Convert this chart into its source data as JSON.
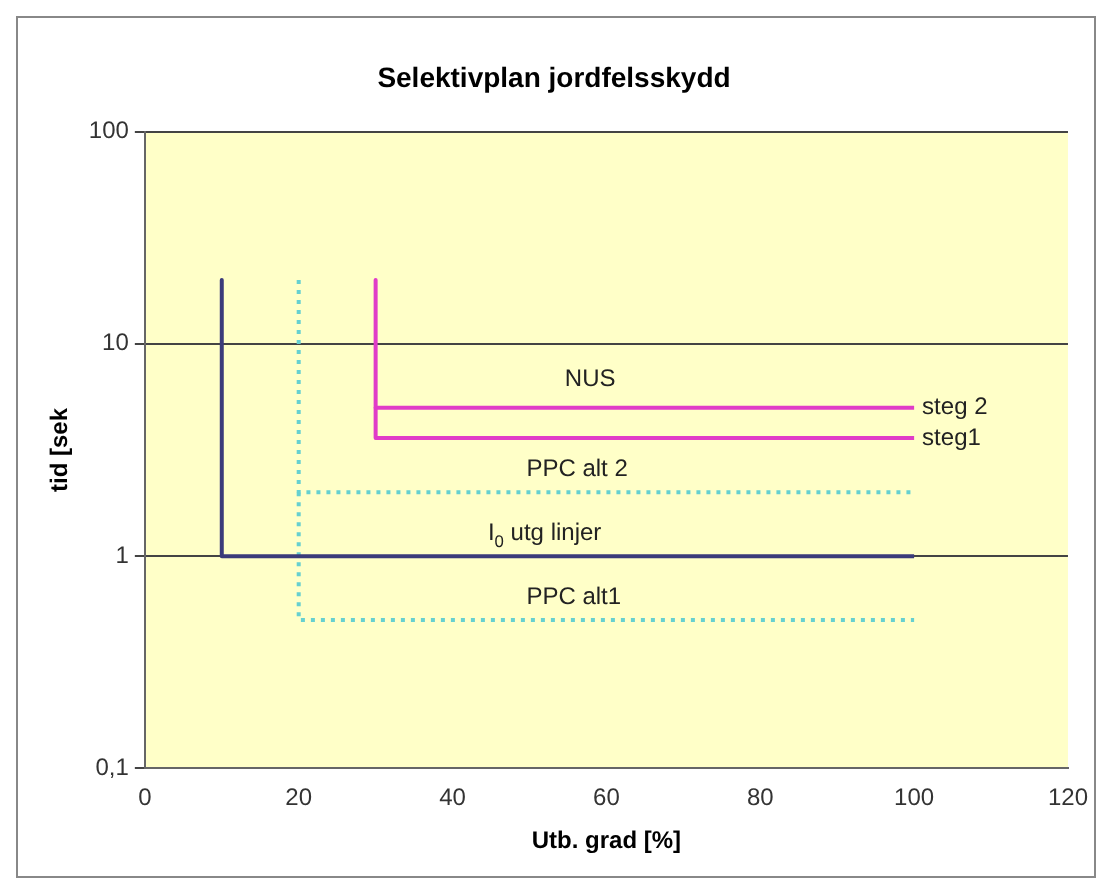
{
  "chart_data": {
    "type": "line",
    "title": "Selektivplan jordfelsskydd",
    "xlabel": "Utb. grad [%]",
    "ylabel": "tid [sek",
    "log": "y",
    "grid": "y",
    "legend": false,
    "marker": "none",
    "xlim": [
      0,
      120
    ],
    "xticks": [
      0,
      20,
      40,
      60,
      80,
      100,
      120
    ],
    "ylim": [
      0.1,
      100
    ],
    "yticks": [
      {
        "value": 0.1,
        "label": "0,1"
      },
      1,
      10,
      100
    ],
    "series": [
      {
        "name": "I$_{0}$ utg linjer",
        "color": "#3b3b7a",
        "line_style": "solid",
        "x": [
          10,
          10,
          100
        ],
        "values": [
          20,
          1,
          1
        ]
      },
      {
        "name": "PPC alt 2",
        "color": "#66d0d0",
        "line_style": "dotted",
        "x": [
          20,
          20,
          100
        ],
        "values": [
          20,
          2,
          2
        ]
      },
      {
        "name": "PPC alt1",
        "color": "#66d0d0",
        "line_style": "dotted",
        "x": [
          20,
          20,
          100
        ],
        "values": [
          2,
          0.5,
          0.5
        ]
      },
      {
        "name": "steg 2",
        "color": "#e03cc8",
        "line_style": "solid",
        "x": [
          30,
          30,
          100
        ],
        "values": [
          20,
          5,
          5
        ]
      },
      {
        "name": "steg1",
        "color": "#e03cc8",
        "line_style": "solid",
        "x": [
          30,
          30,
          100
        ],
        "values": [
          5,
          3.6,
          3.6
        ]
      }
    ],
    "annotations": [
      "NUS"
    ]
  }
}
